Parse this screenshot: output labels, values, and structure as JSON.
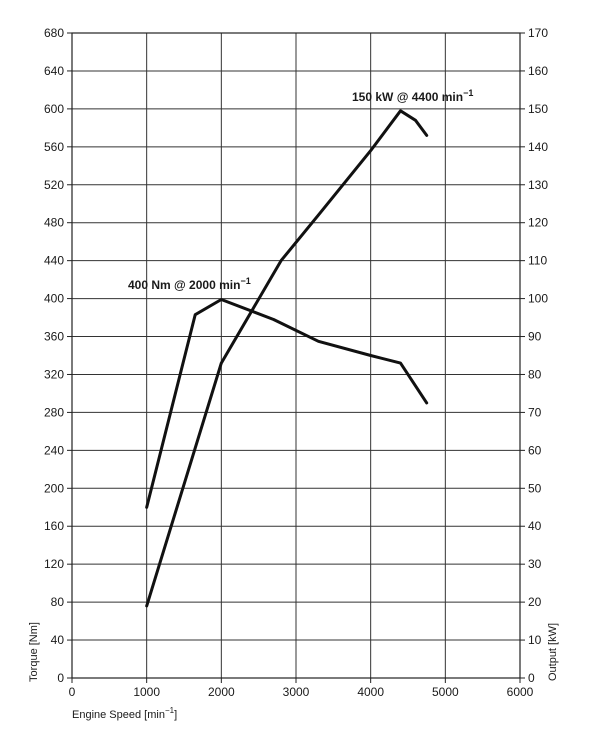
{
  "chart_data": {
    "type": "line",
    "xlabel": "Engine Speed [min",
    "xlabel_sup": "−1",
    "xlabel_close": "]",
    "ylabel_left": "Torque [Nm]",
    "ylabel_right": "Output [kW]",
    "xlim": [
      0,
      6000
    ],
    "ylim_left": [
      0,
      680
    ],
    "ylim_right": [
      0,
      170
    ],
    "x_ticks": [
      "0",
      "1000",
      "2000",
      "3000",
      "4000",
      "5000",
      "6000"
    ],
    "y_ticks_left": [
      "0",
      "40",
      "80",
      "120",
      "160",
      "200",
      "240",
      "280",
      "320",
      "360",
      "400",
      "440",
      "480",
      "520",
      "560",
      "600",
      "640",
      "680"
    ],
    "y_ticks_right": [
      "0",
      "10",
      "20",
      "30",
      "40",
      "50",
      "60",
      "70",
      "80",
      "90",
      "100",
      "110",
      "120",
      "130",
      "140",
      "150",
      "160",
      "170"
    ],
    "grid": true,
    "series": [
      {
        "axis": "left",
        "points": [
          [
            1000,
            180
          ],
          [
            1650,
            383
          ],
          [
            2000,
            399
          ],
          [
            2700,
            378
          ],
          [
            3300,
            355
          ],
          [
            4000,
            340
          ],
          [
            4400,
            332
          ],
          [
            4750,
            290
          ]
        ]
      },
      {
        "axis": "right",
        "points": [
          [
            1000,
            19
          ],
          [
            2000,
            83
          ],
          [
            2800,
            110
          ],
          [
            3300,
            122
          ],
          [
            4000,
            139
          ],
          [
            4400,
            149.5
          ],
          [
            4600,
            147
          ],
          [
            4750,
            143
          ]
        ]
      }
    ],
    "annotations": [
      {
        "id": "torque_peak",
        "text": "400 Nm @ 2000 min",
        "sup": "−1",
        "x": 2000,
        "y": 400,
        "axis": "left"
      },
      {
        "id": "power_peak",
        "text": "150 kW @ 4400  min",
        "sup": "−1",
        "x": 4400,
        "y": 150,
        "axis": "right"
      }
    ]
  }
}
